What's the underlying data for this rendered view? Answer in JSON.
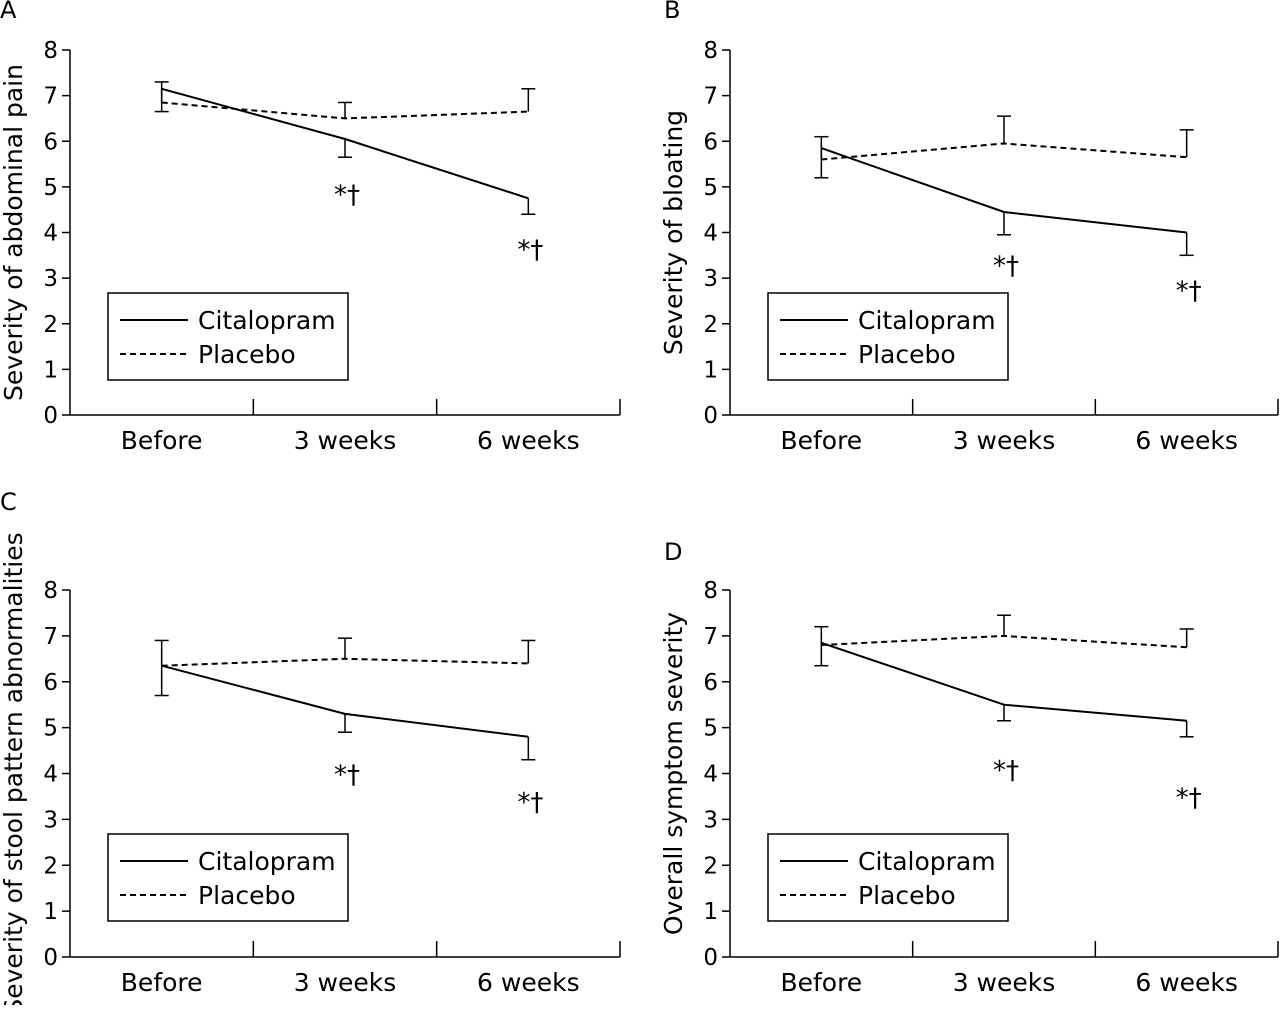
{
  "chart_data": [
    {
      "panel": "A",
      "type": "line",
      "categories": [
        "Before",
        "3 weeks",
        "6 weeks"
      ],
      "ylabel": "Severity of abdominal pain",
      "ylim": [
        0,
        8
      ],
      "yticks": [
        "0",
        "1",
        "2",
        "3",
        "4",
        "5",
        "6",
        "7",
        "8"
      ],
      "legend_placement": "lower-left",
      "series": [
        {
          "name": "Citalopram",
          "style": "solid",
          "values": [
            7.15,
            6.05,
            4.75
          ],
          "err": [
            0.5,
            0.4,
            0.35
          ],
          "err_dir": "down"
        },
        {
          "name": "Placebo",
          "style": "dashed",
          "values": [
            6.85,
            6.5,
            6.65
          ],
          "err": [
            0.45,
            0.35,
            0.5
          ],
          "err_dir": "up"
        }
      ],
      "annotations": [
        {
          "category": "3 weeks",
          "text": "*†",
          "y": 4.85
        },
        {
          "category": "6 weeks",
          "text": "*†",
          "y": 3.65
        }
      ]
    },
    {
      "panel": "B",
      "type": "line",
      "categories": [
        "Before",
        "3 weeks",
        "6 weeks"
      ],
      "ylabel": "Severity of bloating",
      "ylim": [
        0,
        8
      ],
      "yticks": [
        "0",
        "1",
        "2",
        "3",
        "4",
        "5",
        "6",
        "7",
        "8"
      ],
      "legend_placement": "lower-left",
      "series": [
        {
          "name": "Citalopram",
          "style": "solid",
          "values": [
            5.85,
            4.45,
            4.0
          ],
          "err": [
            0.65,
            0.5,
            0.5
          ],
          "err_dir": "down"
        },
        {
          "name": "Placebo",
          "style": "dashed",
          "values": [
            5.6,
            5.95,
            5.65
          ],
          "err": [
            0.5,
            0.6,
            0.6
          ],
          "err_dir": "up"
        }
      ],
      "annotations": [
        {
          "category": "3 weeks",
          "text": "*†",
          "y": 3.3
        },
        {
          "category": "6 weeks",
          "text": "*†",
          "y": 2.75
        }
      ]
    },
    {
      "panel": "C",
      "type": "line",
      "categories": [
        "Before",
        "3 weeks",
        "6 weeks"
      ],
      "ylabel": "Severity of stool pattern abnormalities",
      "ylim": [
        0,
        8
      ],
      "yticks": [
        "0",
        "1",
        "2",
        "3",
        "4",
        "5",
        "6",
        "7",
        "8"
      ],
      "legend_placement": "lower-left",
      "series": [
        {
          "name": "Citalopram",
          "style": "solid",
          "values": [
            6.35,
            5.3,
            4.8
          ],
          "err": [
            0.65,
            0.4,
            0.5
          ],
          "err_dir": "down"
        },
        {
          "name": "Placebo",
          "style": "dashed",
          "values": [
            6.35,
            6.5,
            6.4
          ],
          "err": [
            0.55,
            0.45,
            0.5
          ],
          "err_dir": "up"
        }
      ],
      "annotations": [
        {
          "category": "3 weeks",
          "text": "*†",
          "y": 4.0
        },
        {
          "category": "6 weeks",
          "text": "*†",
          "y": 3.4
        }
      ]
    },
    {
      "panel": "D",
      "type": "line",
      "categories": [
        "Before",
        "3 weeks",
        "6 weeks"
      ],
      "ylabel": "Overall symptom severity",
      "ylim": [
        0,
        8
      ],
      "yticks": [
        "0",
        "1",
        "2",
        "3",
        "4",
        "5",
        "6",
        "7",
        "8"
      ],
      "legend_placement": "lower-left",
      "series": [
        {
          "name": "Citalopram",
          "style": "solid",
          "values": [
            6.85,
            5.5,
            5.15
          ],
          "err": [
            0.5,
            0.35,
            0.35
          ],
          "err_dir": "down"
        },
        {
          "name": "Placebo",
          "style": "dashed",
          "values": [
            6.8,
            7.0,
            6.75
          ],
          "err": [
            0.4,
            0.45,
            0.4
          ],
          "err_dir": "up"
        }
      ],
      "annotations": [
        {
          "category": "3 weeks",
          "text": "*†",
          "y": 4.1
        },
        {
          "category": "6 weeks",
          "text": "*†",
          "y": 3.5
        }
      ]
    }
  ]
}
